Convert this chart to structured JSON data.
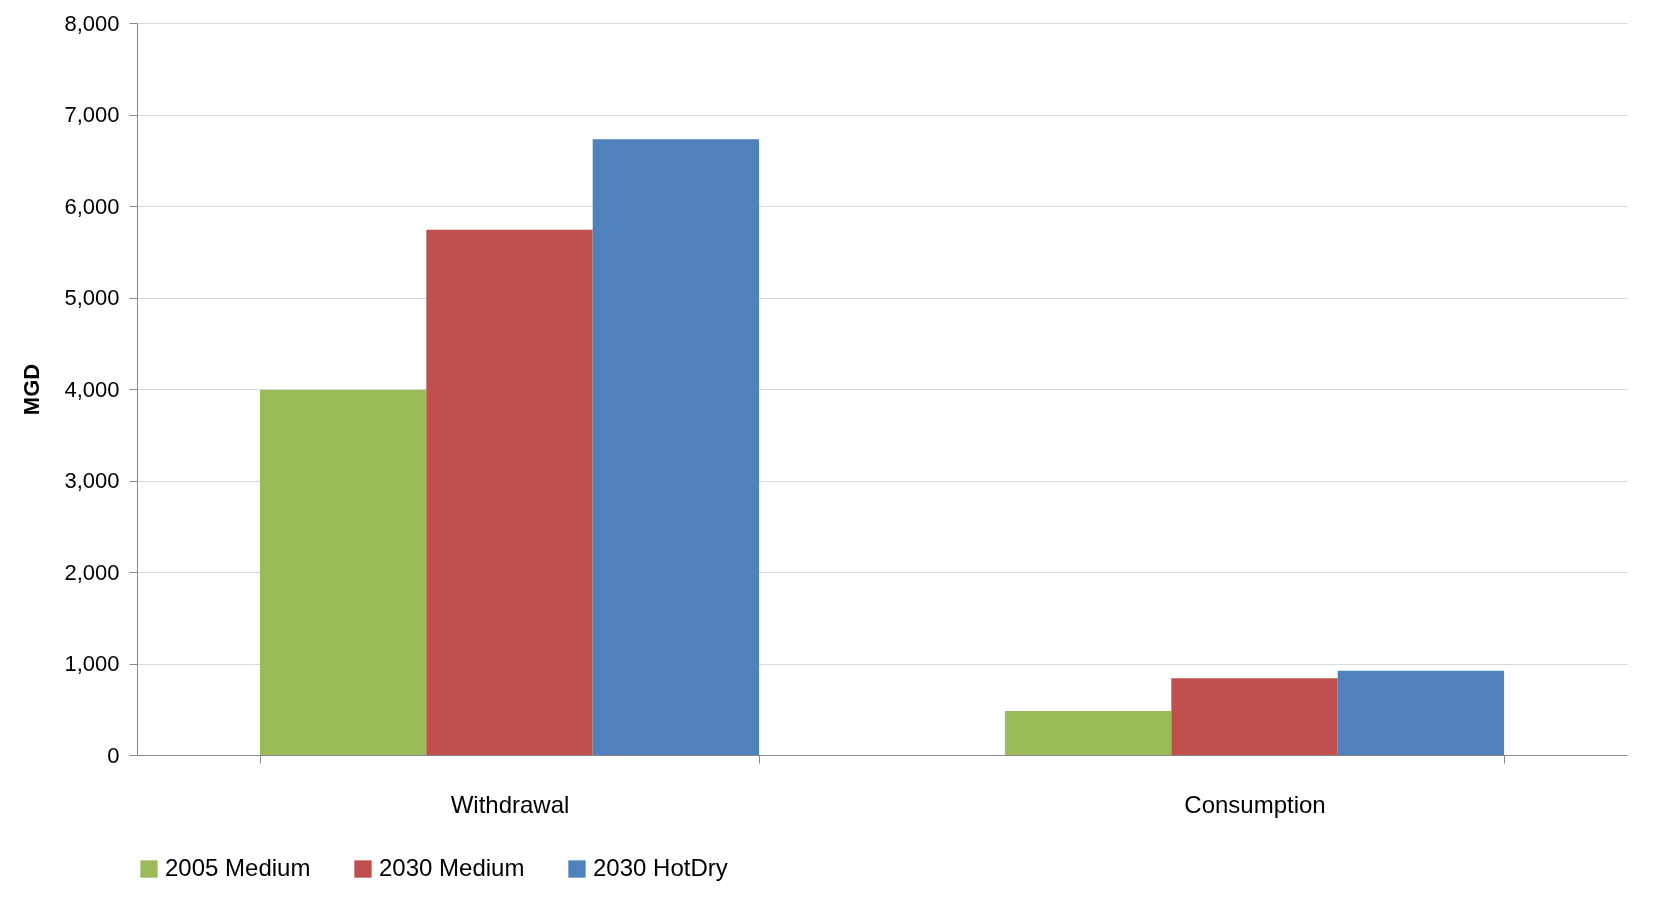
{
  "chart_data": {
    "type": "bar",
    "ylabel": "MGD",
    "categories": [
      "Withdrawal",
      "Consumption"
    ],
    "series": [
      {
        "name": "2005 Medium",
        "color": "#9bbb59",
        "values": [
          3990,
          480
        ]
      },
      {
        "name": "2030 Medium",
        "color": "#c0504d",
        "values": [
          5740,
          840
        ]
      },
      {
        "name": "2030 HotDry",
        "color": "#4f81bd",
        "values": [
          6730,
          920
        ]
      }
    ],
    "ylim": [
      0,
      8000
    ],
    "yticks": [
      {
        "value": 0,
        "label": "0"
      },
      {
        "value": 1000,
        "label": "1,000"
      },
      {
        "value": 2000,
        "label": "2,000"
      },
      {
        "value": 3000,
        "label": "3,000"
      },
      {
        "value": 4000,
        "label": "4,000"
      },
      {
        "value": 5000,
        "label": "5,000"
      },
      {
        "value": 6000,
        "label": "6,000"
      },
      {
        "value": 7000,
        "label": "7,000"
      },
      {
        "value": 8000,
        "label": "8,000"
      }
    ],
    "grid": "y",
    "legend": "bottom"
  }
}
